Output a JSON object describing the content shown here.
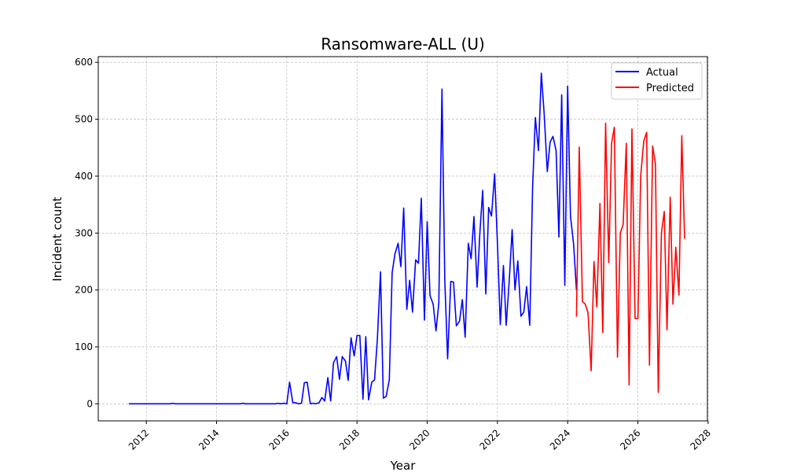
{
  "chart_data": {
    "type": "line",
    "title": "Ransomware-ALL (U)",
    "xlabel": "Year",
    "ylabel": "Incident count",
    "xlim": [
      2010.63,
      2027.98
    ],
    "ylim": [
      -30,
      610
    ],
    "x_ticks": [
      2012,
      2014,
      2016,
      2018,
      2020,
      2022,
      2024,
      2026,
      2028
    ],
    "y_ticks": [
      0,
      100,
      200,
      300,
      400,
      500,
      600
    ],
    "grid": true,
    "legend_position": "top-right",
    "series": [
      {
        "name": "Actual",
        "color": "#0000ff",
        "x": [
          2011.5,
          2011.58,
          2011.67,
          2011.75,
          2011.83,
          2011.92,
          2012.0,
          2012.08,
          2012.17,
          2012.25,
          2012.33,
          2012.42,
          2012.5,
          2012.58,
          2012.67,
          2012.75,
          2012.83,
          2012.92,
          2013.0,
          2013.08,
          2013.17,
          2013.25,
          2013.33,
          2013.42,
          2013.5,
          2013.58,
          2013.67,
          2013.75,
          2013.83,
          2013.92,
          2014.0,
          2014.08,
          2014.17,
          2014.25,
          2014.33,
          2014.42,
          2014.5,
          2014.58,
          2014.67,
          2014.75,
          2014.83,
          2014.92,
          2015.0,
          2015.08,
          2015.17,
          2015.25,
          2015.33,
          2015.42,
          2015.5,
          2015.58,
          2015.67,
          2015.75,
          2015.83,
          2015.92,
          2016.0,
          2016.08,
          2016.17,
          2016.25,
          2016.33,
          2016.42,
          2016.5,
          2016.58,
          2016.67,
          2016.75,
          2016.83,
          2016.92,
          2017.0,
          2017.08,
          2017.17,
          2017.25,
          2017.33,
          2017.42,
          2017.5,
          2017.58,
          2017.67,
          2017.75,
          2017.83,
          2017.92,
          2018.0,
          2018.08,
          2018.17,
          2018.25,
          2018.33,
          2018.42,
          2018.5,
          2018.58,
          2018.67,
          2018.75,
          2018.83,
          2018.92,
          2019.0,
          2019.08,
          2019.17,
          2019.25,
          2019.33,
          2019.42,
          2019.5,
          2019.58,
          2019.67,
          2019.75,
          2019.83,
          2019.92,
          2020.0,
          2020.08,
          2020.17,
          2020.25,
          2020.33,
          2020.42,
          2020.5,
          2020.58,
          2020.67,
          2020.75,
          2020.83,
          2020.92,
          2021.0,
          2021.08,
          2021.17,
          2021.25,
          2021.33,
          2021.42,
          2021.5,
          2021.58,
          2021.67,
          2021.75,
          2021.83,
          2021.92,
          2022.0,
          2022.08,
          2022.17,
          2022.25,
          2022.33,
          2022.42,
          2022.5,
          2022.58,
          2022.67,
          2022.75,
          2022.83,
          2022.92,
          2023.0,
          2023.08,
          2023.17,
          2023.25,
          2023.33,
          2023.42,
          2023.5,
          2023.58,
          2023.67,
          2023.75,
          2023.83,
          2023.92,
          2024.0,
          2024.08,
          2024.17,
          2024.25
        ],
        "values": [
          0,
          0,
          0,
          0,
          0,
          0,
          0,
          0,
          0,
          0,
          0,
          0,
          0,
          0,
          0,
          1,
          0,
          0,
          0,
          0,
          0,
          0,
          0,
          0,
          0,
          0,
          0,
          0,
          0,
          0,
          0,
          0,
          0,
          0,
          0,
          0,
          0,
          0,
          0,
          1,
          0,
          0,
          0,
          0,
          0,
          0,
          0,
          0,
          0,
          0,
          0,
          1,
          0,
          1,
          0,
          38,
          2,
          2,
          0,
          1,
          37,
          38,
          0,
          1,
          0,
          2,
          11,
          5,
          46,
          5,
          72,
          83,
          43,
          83,
          75,
          41,
          116,
          84,
          120,
          120,
          8,
          118,
          7,
          38,
          42,
          113,
          232,
          10,
          13,
          42,
          230,
          263,
          282,
          241,
          344,
          166,
          217,
          161,
          253,
          247,
          361,
          147,
          320,
          190,
          175,
          128,
          177,
          553,
          217,
          79,
          215,
          214,
          137,
          145,
          183,
          117,
          282,
          255,
          329,
          205,
          300,
          375,
          193,
          345,
          330,
          404,
          281,
          139,
          243,
          138,
          210,
          306,
          200,
          251,
          154,
          161,
          206,
          138,
          380,
          503,
          445,
          581,
          510,
          408,
          460,
          470,
          445,
          293,
          543,
          208,
          558,
          330,
          280,
          200
        ]
      },
      {
        "name": "Predicted",
        "color": "#ff0000",
        "x": [
          2024.25,
          2024.33,
          2024.42,
          2024.5,
          2024.58,
          2024.67,
          2024.75,
          2024.83,
          2024.92,
          2025.0,
          2025.08,
          2025.17,
          2025.25,
          2025.33,
          2025.42,
          2025.5,
          2025.58,
          2025.67,
          2025.75,
          2025.83,
          2025.92,
          2026.0,
          2026.08,
          2026.17,
          2026.25,
          2026.33,
          2026.42,
          2026.5,
          2026.58,
          2026.67,
          2026.75,
          2026.83,
          2026.92,
          2027.0,
          2027.08,
          2027.17,
          2027.25,
          2027.33
        ],
        "values": [
          153,
          451,
          180,
          175,
          160,
          58,
          250,
          170,
          352,
          125,
          493,
          248,
          458,
          486,
          82,
          300,
          315,
          458,
          33,
          483,
          150,
          150,
          400,
          462,
          477,
          68,
          453,
          421,
          20,
          300,
          338,
          130,
          363,
          175,
          275,
          191,
          471,
          290
        ]
      }
    ]
  }
}
